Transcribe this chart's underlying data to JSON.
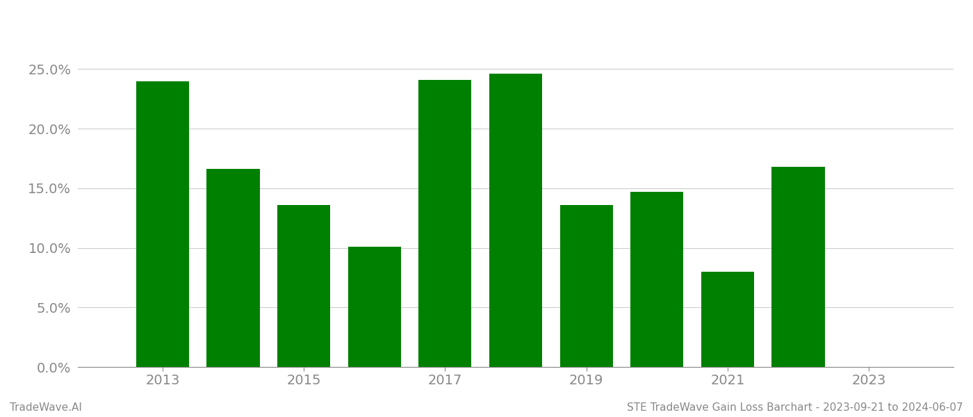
{
  "years": [
    2013,
    2014,
    2015,
    2016,
    2017,
    2018,
    2019,
    2020,
    2021,
    2022
  ],
  "values": [
    0.24,
    0.166,
    0.136,
    0.101,
    0.241,
    0.246,
    0.136,
    0.147,
    0.08,
    0.168
  ],
  "bar_color": "#008000",
  "ylim": [
    0,
    0.28
  ],
  "yticks": [
    0.0,
    0.05,
    0.1,
    0.15,
    0.2,
    0.25
  ],
  "xlim": [
    2011.8,
    2024.2
  ],
  "xticks": [
    2013,
    2015,
    2017,
    2019,
    2021,
    2023
  ],
  "background_color": "#ffffff",
  "grid_color": "#cccccc",
  "tick_color": "#888888",
  "footer_left": "TradeWave.AI",
  "footer_right": "STE TradeWave Gain Loss Barchart - 2023-09-21 to 2024-06-07",
  "bar_width": 0.75,
  "fig_width": 14.0,
  "fig_height": 6.0,
  "dpi": 100,
  "tick_fontsize": 14,
  "footer_fontsize": 11
}
